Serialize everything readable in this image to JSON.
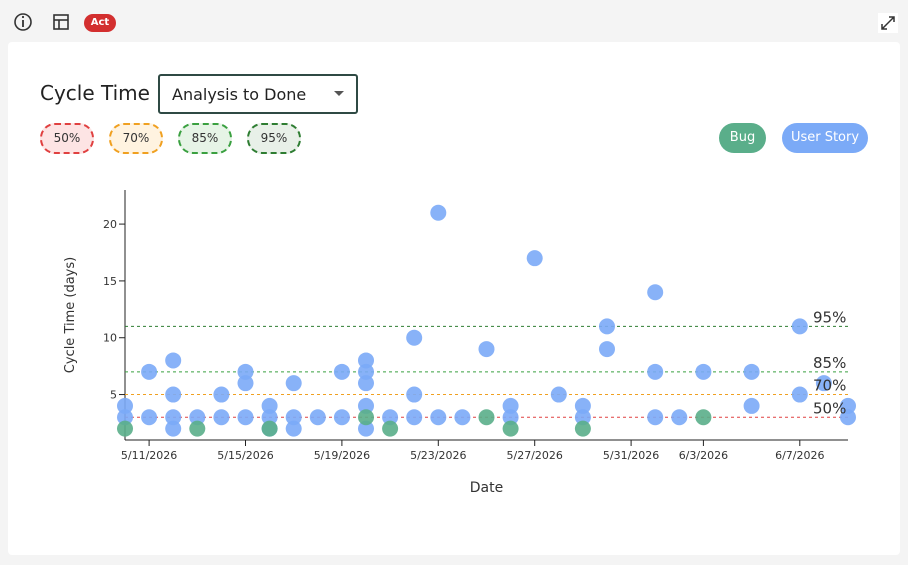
{
  "ui": {
    "badge": "Act",
    "title": "Cycle Time",
    "dropdown": "Analysis to Done"
  },
  "chart_data": {
    "type": "scatter",
    "x_label": "Date",
    "y_label": "Cycle Time (days)",
    "xlim": [
      "5/10/2026",
      "6/9/2026"
    ],
    "xticks": [
      "5/11/2026",
      "5/15/2026",
      "5/19/2026",
      "5/23/2026",
      "5/27/2026",
      "5/31/2026",
      "6/3/2026",
      "6/7/2026"
    ],
    "ylim": [
      1,
      23
    ],
    "yticks": [
      5,
      10,
      15,
      20
    ],
    "reference_lines": [
      {
        "label": "50%",
        "value": 3,
        "color": "#e04040"
      },
      {
        "label": "70%",
        "value": 5,
        "color": "#f0a020"
      },
      {
        "label": "85%",
        "value": 7,
        "color": "#3aa040"
      },
      {
        "label": "95%",
        "value": 11,
        "color": "#2e7d32"
      }
    ],
    "series": [
      {
        "name": "Bug",
        "color": "#5aae8a",
        "x": [
          "5/10/2026",
          "5/13/2026",
          "5/16/2026",
          "5/20/2026",
          "5/21/2026",
          "5/25/2026",
          "5/26/2026",
          "5/29/2026",
          "6/3/2026"
        ],
        "values": [
          2,
          2,
          2,
          3,
          2,
          3,
          2,
          2,
          3
        ]
      },
      {
        "name": "User Story",
        "color": "#7baaf7",
        "x": [
          "5/10/2026",
          "5/10/2026",
          "5/11/2026",
          "5/11/2026",
          "5/12/2026",
          "5/12/2026",
          "5/12/2026",
          "5/12/2026",
          "5/13/2026",
          "5/14/2026",
          "5/14/2026",
          "5/15/2026",
          "5/15/2026",
          "5/15/2026",
          "5/16/2026",
          "5/16/2026",
          "5/16/2026",
          "5/17/2026",
          "5/17/2026",
          "5/17/2026",
          "5/18/2026",
          "5/19/2026",
          "5/19/2026",
          "5/20/2026",
          "5/20/2026",
          "5/20/2026",
          "5/20/2026",
          "5/20/2026",
          "5/21/2026",
          "5/22/2026",
          "5/22/2026",
          "5/22/2026",
          "5/23/2026",
          "5/23/2026",
          "5/24/2026",
          "5/25/2026",
          "5/26/2026",
          "5/26/2026",
          "5/27/2026",
          "5/28/2026",
          "5/29/2026",
          "5/29/2026",
          "5/30/2026",
          "5/30/2026",
          "6/1/2026",
          "6/1/2026",
          "6/1/2026",
          "6/2/2026",
          "6/3/2026",
          "6/5/2026",
          "6/5/2026",
          "6/7/2026",
          "6/7/2026",
          "6/8/2026",
          "6/9/2026",
          "6/9/2026"
        ],
        "values": [
          4,
          3,
          7,
          3,
          8,
          5,
          3,
          2,
          3,
          5,
          3,
          7,
          6,
          3,
          4,
          3,
          2,
          6,
          3,
          2,
          3,
          7,
          3,
          8,
          7,
          6,
          4,
          2,
          3,
          10,
          5,
          3,
          21,
          3,
          3,
          9,
          4,
          3,
          17,
          5,
          4,
          3,
          11,
          9,
          14,
          7,
          3,
          3,
          7,
          7,
          4,
          11,
          5,
          6,
          4,
          3
        ]
      }
    ]
  }
}
